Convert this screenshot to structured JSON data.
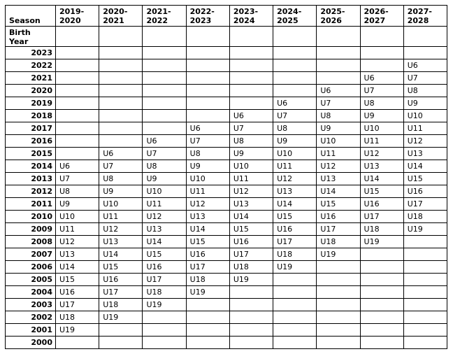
{
  "table": {
    "corner": "Season",
    "row_header_label": "Birth\nYear",
    "seasons": [
      "2019-\n2020",
      "2020-\n2021",
      "2021-\n2022",
      "2022-\n2023",
      "2023-\n2024",
      "2024-\n2025",
      "2025-\n2026",
      "2026-\n2027",
      "2027-\n2028"
    ],
    "rows": [
      {
        "year": "2023",
        "cells": [
          null,
          null,
          null,
          null,
          null,
          null,
          null,
          null,
          null
        ]
      },
      {
        "year": "2022",
        "cells": [
          null,
          null,
          null,
          null,
          null,
          null,
          null,
          null,
          "U6"
        ]
      },
      {
        "year": "2021",
        "cells": [
          null,
          null,
          null,
          null,
          null,
          null,
          null,
          "U6",
          "U7"
        ]
      },
      {
        "year": "2020",
        "cells": [
          null,
          null,
          null,
          null,
          null,
          null,
          "U6",
          "U7",
          "U8"
        ]
      },
      {
        "year": "2019",
        "cells": [
          null,
          null,
          null,
          null,
          null,
          "U6",
          "U7",
          "U8",
          "U9"
        ]
      },
      {
        "year": "2018",
        "cells": [
          null,
          null,
          null,
          null,
          "U6",
          "U7",
          "U8",
          "U9",
          "U10"
        ]
      },
      {
        "year": "2017",
        "cells": [
          null,
          null,
          null,
          "U6",
          "U7",
          "U8",
          "U9",
          "U10",
          "U11"
        ]
      },
      {
        "year": "2016",
        "cells": [
          null,
          null,
          "U6",
          "U7",
          "U8",
          "U9",
          "U10",
          "U11",
          "U12"
        ]
      },
      {
        "year": "2015",
        "cells": [
          null,
          "U6",
          "U7",
          "U8",
          "U9",
          "U10",
          "U11",
          "U12",
          "U13"
        ]
      },
      {
        "year": "2014",
        "cells": [
          "U6",
          "U7",
          "U8",
          "U9",
          "U10",
          "U11",
          "U12",
          "U13",
          "U14"
        ]
      },
      {
        "year": "2013",
        "cells": [
          "U7",
          "U8",
          "U9",
          "U10",
          "U11",
          "U12",
          "U13",
          "U14",
          "U15"
        ]
      },
      {
        "year": "2012",
        "cells": [
          "U8",
          "U9",
          "U10",
          "U11",
          "U12",
          "U13",
          "U14",
          "U15",
          "U16"
        ]
      },
      {
        "year": "2011",
        "cells": [
          "U9",
          "U10",
          "U11",
          "U12",
          "U13",
          "U14",
          "U15",
          "U16",
          "U17"
        ]
      },
      {
        "year": "2010",
        "cells": [
          "U10",
          "U11",
          "U12",
          "U13",
          "U14",
          "U15",
          "U16",
          "U17",
          "U18"
        ]
      },
      {
        "year": "2009",
        "cells": [
          "U11",
          "U12",
          "U13",
          "U14",
          "U15",
          "U16",
          "U17",
          "U18",
          "U19"
        ]
      },
      {
        "year": "2008",
        "cells": [
          "U12",
          "U13",
          "U14",
          "U15",
          "U16",
          "U17",
          "U18",
          "U19",
          null
        ]
      },
      {
        "year": "2007",
        "cells": [
          "U13",
          "U14",
          "U15",
          "U16",
          "U17",
          "U18",
          "U19",
          null,
          null
        ]
      },
      {
        "year": "2006",
        "cells": [
          "U14",
          "U15",
          "U16",
          "U17",
          "U18",
          "U19",
          null,
          null,
          null
        ]
      },
      {
        "year": "2005",
        "cells": [
          "U15",
          "U16",
          "U17",
          "U18",
          "U19",
          null,
          null,
          null,
          null
        ]
      },
      {
        "year": "2004",
        "cells": [
          "U16",
          "U17",
          "U18",
          "U19",
          null,
          null,
          null,
          null,
          null
        ]
      },
      {
        "year": "2003",
        "cells": [
          "U17",
          "U18",
          "U19",
          null,
          null,
          null,
          null,
          null,
          null
        ]
      },
      {
        "year": "2002",
        "cells": [
          "U18",
          "U19",
          null,
          null,
          null,
          null,
          null,
          null,
          null
        ]
      },
      {
        "year": "2001",
        "cells": [
          "U19",
          null,
          null,
          null,
          null,
          null,
          null,
          null,
          null
        ]
      },
      {
        "year": "2000",
        "cells": [
          null,
          null,
          null,
          null,
          null,
          null,
          null,
          null,
          null
        ]
      }
    ]
  }
}
